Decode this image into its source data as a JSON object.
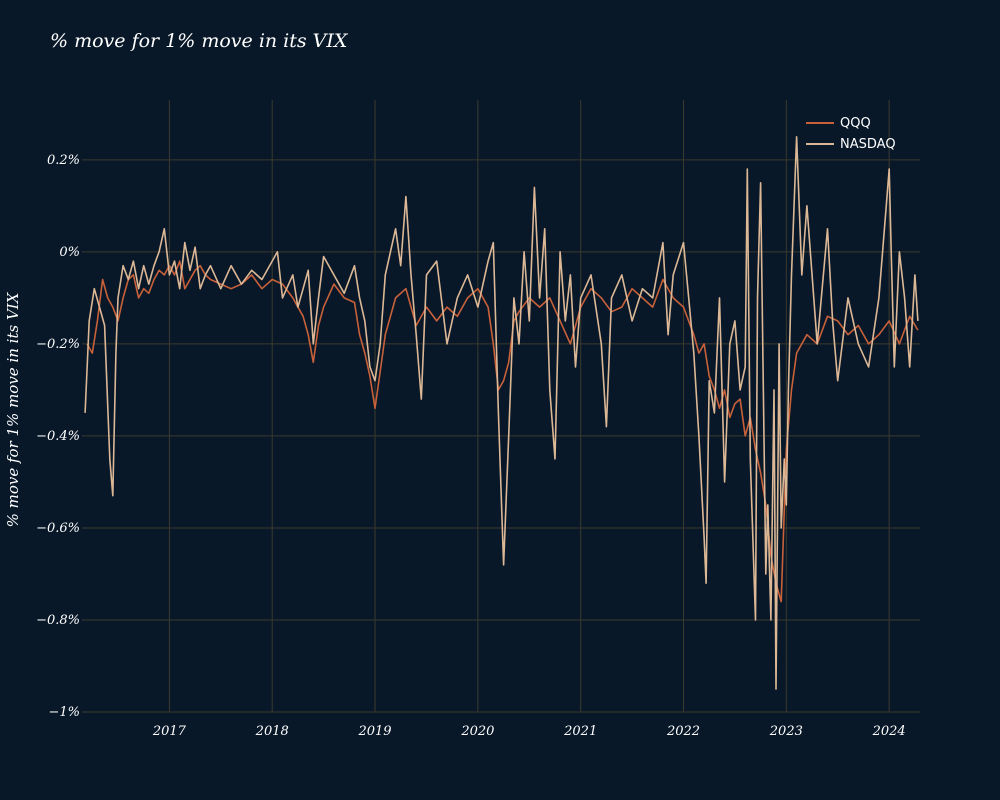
{
  "chart_data": {
    "type": "line",
    "title": "% move for 1% move in its VIX",
    "xlabel": "",
    "ylabel": "% move for 1% move in its VIX",
    "xlim": [
      2016.15,
      2024.3
    ],
    "ylim": [
      -1.0,
      0.33
    ],
    "grid": true,
    "legend": "top-right",
    "x_ticks": [
      {
        "value": 2017,
        "label": "2017"
      },
      {
        "value": 2018,
        "label": "2018"
      },
      {
        "value": 2019,
        "label": "2019"
      },
      {
        "value": 2020,
        "label": "2020"
      },
      {
        "value": 2021,
        "label": "2021"
      },
      {
        "value": 2022,
        "label": "2022"
      },
      {
        "value": 2023,
        "label": "2023"
      },
      {
        "value": 2024,
        "label": "2024"
      }
    ],
    "y_ticks": [
      {
        "value": 0.2,
        "label": "0.2%"
      },
      {
        "value": 0.0,
        "label": "0%"
      },
      {
        "value": -0.2,
        "label": "−0.2%"
      },
      {
        "value": -0.4,
        "label": "−0.4%"
      },
      {
        "value": -0.6,
        "label": "−0.6%"
      },
      {
        "value": -0.8,
        "label": "−0.8%"
      },
      {
        "value": -1.0,
        "label": "−1%"
      }
    ],
    "series": [
      {
        "name": "QQQ",
        "color": "#c8613a",
        "x": [
          2016.2,
          2016.25,
          2016.3,
          2016.35,
          2016.4,
          2016.45,
          2016.5,
          2016.55,
          2016.6,
          2016.65,
          2016.7,
          2016.75,
          2016.8,
          2016.85,
          2016.9,
          2016.95,
          2017.0,
          2017.05,
          2017.1,
          2017.15,
          2017.2,
          2017.25,
          2017.3,
          2017.35,
          2017.4,
          2017.5,
          2017.6,
          2017.7,
          2017.8,
          2017.9,
          2018.0,
          2018.1,
          2018.2,
          2018.3,
          2018.35,
          2018.4,
          2018.45,
          2018.5,
          2018.6,
          2018.7,
          2018.8,
          2018.85,
          2018.9,
          2018.95,
          2019.0,
          2019.05,
          2019.1,
          2019.2,
          2019.3,
          2019.4,
          2019.5,
          2019.6,
          2019.7,
          2019.8,
          2019.9,
          2020.0,
          2020.1,
          2020.15,
          2020.2,
          2020.25,
          2020.3,
          2020.35,
          2020.4,
          2020.5,
          2020.6,
          2020.7,
          2020.8,
          2020.9,
          2021.0,
          2021.1,
          2021.2,
          2021.3,
          2021.4,
          2021.5,
          2021.6,
          2021.7,
          2021.8,
          2021.9,
          2022.0,
          2022.1,
          2022.15,
          2022.2,
          2022.25,
          2022.3,
          2022.35,
          2022.4,
          2022.45,
          2022.5,
          2022.55,
          2022.6,
          2022.65,
          2022.7,
          2022.75,
          2022.8,
          2022.85,
          2022.9,
          2022.95,
          2023.0,
          2023.05,
          2023.1,
          2023.2,
          2023.3,
          2023.4,
          2023.5,
          2023.6,
          2023.7,
          2023.8,
          2023.9,
          2024.0,
          2024.1,
          2024.2,
          2024.28
        ],
        "y": [
          -0.2,
          -0.22,
          -0.15,
          -0.06,
          -0.1,
          -0.12,
          -0.15,
          -0.1,
          -0.06,
          -0.05,
          -0.1,
          -0.08,
          -0.09,
          -0.06,
          -0.04,
          -0.05,
          -0.03,
          -0.05,
          -0.02,
          -0.08,
          -0.06,
          -0.04,
          -0.03,
          -0.05,
          -0.06,
          -0.07,
          -0.08,
          -0.07,
          -0.05,
          -0.08,
          -0.06,
          -0.07,
          -0.1,
          -0.14,
          -0.18,
          -0.24,
          -0.16,
          -0.12,
          -0.07,
          -0.1,
          -0.11,
          -0.18,
          -0.22,
          -0.27,
          -0.34,
          -0.26,
          -0.18,
          -0.1,
          -0.08,
          -0.16,
          -0.12,
          -0.15,
          -0.12,
          -0.14,
          -0.1,
          -0.08,
          -0.12,
          -0.2,
          -0.3,
          -0.28,
          -0.24,
          -0.15,
          -0.13,
          -0.1,
          -0.12,
          -0.1,
          -0.15,
          -0.2,
          -0.12,
          -0.08,
          -0.1,
          -0.13,
          -0.12,
          -0.08,
          -0.1,
          -0.12,
          -0.06,
          -0.1,
          -0.12,
          -0.18,
          -0.22,
          -0.2,
          -0.27,
          -0.3,
          -0.34,
          -0.3,
          -0.36,
          -0.33,
          -0.32,
          -0.4,
          -0.36,
          -0.43,
          -0.48,
          -0.55,
          -0.66,
          -0.72,
          -0.76,
          -0.43,
          -0.3,
          -0.22,
          -0.18,
          -0.2,
          -0.14,
          -0.15,
          -0.18,
          -0.16,
          -0.2,
          -0.18,
          -0.15,
          -0.2,
          -0.14,
          -0.17
        ]
      },
      {
        "name": "NASDAQ",
        "color": "#dcb896",
        "x": [
          2016.18,
          2016.22,
          2016.27,
          2016.32,
          2016.37,
          2016.42,
          2016.45,
          2016.48,
          2016.5,
          2016.55,
          2016.6,
          2016.65,
          2016.7,
          2016.75,
          2016.8,
          2016.85,
          2016.9,
          2016.95,
          2017.0,
          2017.05,
          2017.1,
          2017.15,
          2017.2,
          2017.25,
          2017.3,
          2017.35,
          2017.4,
          2017.5,
          2017.6,
          2017.7,
          2017.8,
          2017.9,
          2018.0,
          2018.05,
          2018.1,
          2018.2,
          2018.25,
          2018.3,
          2018.35,
          2018.4,
          2018.45,
          2018.5,
          2018.6,
          2018.7,
          2018.8,
          2018.85,
          2018.9,
          2018.95,
          2019.0,
          2019.05,
          2019.1,
          2019.2,
          2019.25,
          2019.3,
          2019.35,
          2019.4,
          2019.45,
          2019.5,
          2019.6,
          2019.7,
          2019.8,
          2019.9,
          2020.0,
          2020.1,
          2020.15,
          2020.2,
          2020.25,
          2020.3,
          2020.35,
          2020.4,
          2020.45,
          2020.5,
          2020.55,
          2020.6,
          2020.65,
          2020.7,
          2020.75,
          2020.8,
          2020.85,
          2020.9,
          2020.95,
          2021.0,
          2021.1,
          2021.2,
          2021.25,
          2021.3,
          2021.4,
          2021.5,
          2021.6,
          2021.7,
          2021.8,
          2021.85,
          2021.9,
          2022.0,
          2022.05,
          2022.1,
          2022.15,
          2022.2,
          2022.22,
          2022.25,
          2022.3,
          2022.35,
          2022.4,
          2022.45,
          2022.5,
          2022.55,
          2022.6,
          2022.62,
          2022.65,
          2022.7,
          2022.72,
          2022.75,
          2022.8,
          2022.82,
          2022.85,
          2022.88,
          2022.9,
          2022.93,
          2022.95,
          2022.98,
          2023.0,
          2023.02,
          2023.05,
          2023.1,
          2023.15,
          2023.2,
          2023.3,
          2023.4,
          2023.45,
          2023.5,
          2023.6,
          2023.7,
          2023.8,
          2023.9,
          2024.0,
          2024.02,
          2024.05,
          2024.1,
          2024.15,
          2024.2,
          2024.25,
          2024.28
        ],
        "y": [
          -0.35,
          -0.15,
          -0.08,
          -0.12,
          -0.16,
          -0.45,
          -0.53,
          -0.22,
          -0.1,
          -0.03,
          -0.06,
          -0.02,
          -0.08,
          -0.03,
          -0.07,
          -0.03,
          0.0,
          0.05,
          -0.05,
          -0.02,
          -0.08,
          0.02,
          -0.04,
          0.01,
          -0.08,
          -0.05,
          -0.03,
          -0.08,
          -0.03,
          -0.07,
          -0.04,
          -0.06,
          -0.02,
          0.0,
          -0.1,
          -0.05,
          -0.12,
          -0.08,
          -0.04,
          -0.2,
          -0.1,
          -0.01,
          -0.05,
          -0.09,
          -0.03,
          -0.1,
          -0.15,
          -0.25,
          -0.28,
          -0.2,
          -0.05,
          0.05,
          -0.03,
          0.12,
          -0.05,
          -0.18,
          -0.32,
          -0.05,
          -0.02,
          -0.2,
          -0.1,
          -0.05,
          -0.12,
          -0.02,
          0.02,
          -0.35,
          -0.68,
          -0.4,
          -0.1,
          -0.2,
          0.0,
          -0.15,
          0.14,
          -0.1,
          0.05,
          -0.3,
          -0.45,
          0.0,
          -0.15,
          -0.05,
          -0.25,
          -0.1,
          -0.05,
          -0.2,
          -0.38,
          -0.1,
          -0.05,
          -0.15,
          -0.08,
          -0.1,
          0.02,
          -0.18,
          -0.05,
          0.02,
          -0.1,
          -0.22,
          -0.4,
          -0.62,
          -0.72,
          -0.28,
          -0.35,
          -0.1,
          -0.5,
          -0.2,
          -0.15,
          -0.3,
          -0.25,
          0.18,
          -0.45,
          -0.8,
          -0.1,
          0.15,
          -0.7,
          -0.55,
          -0.8,
          -0.3,
          -0.95,
          -0.2,
          -0.6,
          -0.45,
          -0.55,
          -0.3,
          -0.05,
          0.25,
          -0.05,
          0.1,
          -0.2,
          0.05,
          -0.15,
          -0.28,
          -0.1,
          -0.2,
          -0.25,
          -0.1,
          0.18,
          0.0,
          -0.25,
          0.0,
          -0.1,
          -0.25,
          -0.05,
          -0.15
        ]
      }
    ]
  }
}
